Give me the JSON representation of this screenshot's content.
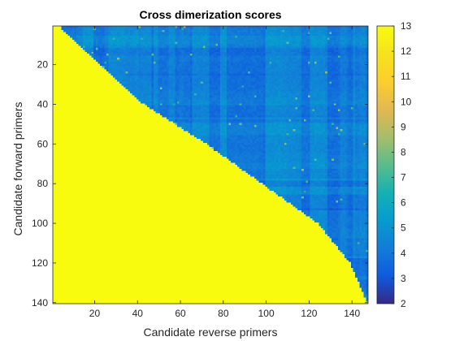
{
  "chart_data": {
    "type": "heatmap",
    "title": "Cross dimerization scores",
    "xlabel": "Candidate reverse primers",
    "ylabel": "Candidate forward primers",
    "n_rows": 140,
    "n_cols": 147,
    "xlim": [
      0.5,
      147.5
    ],
    "ylim": [
      0.5,
      140.5
    ],
    "y_reversed": true,
    "x_ticks": [
      20,
      40,
      60,
      80,
      100,
      120,
      140
    ],
    "y_ticks": [
      20,
      40,
      60,
      80,
      100,
      120,
      140
    ],
    "colormap": "parula",
    "clim": [
      2,
      13
    ],
    "colorbar_ticks": [
      2,
      3,
      4,
      5,
      6,
      7,
      8,
      9,
      10,
      11,
      12,
      13
    ],
    "fill_value": 13,
    "diagonal_boundary_rows": [
      1,
      20,
      40,
      60,
      80,
      100,
      120,
      140
    ],
    "diagonal_boundary_cols": [
      4,
      22,
      43,
      72,
      98,
      124,
      139,
      147
    ],
    "typical_upper_range": [
      2.5,
      6.5
    ],
    "grid": false
  }
}
